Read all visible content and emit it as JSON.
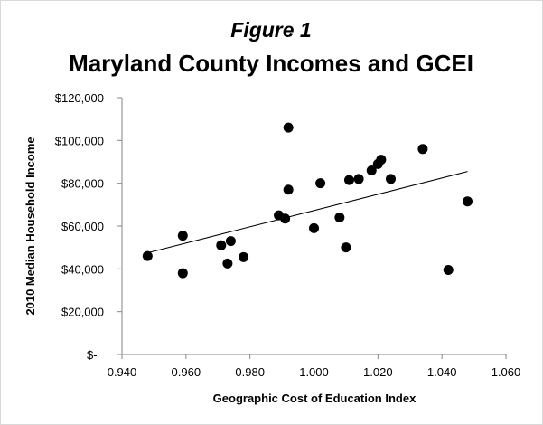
{
  "chart_data": {
    "type": "scatter",
    "title": "Maryland County Incomes and GCEI",
    "subtitle": "Figure 1",
    "xlabel": "Geographic Cost of Education Index",
    "ylabel": "2010 Median Household Income",
    "xlim": [
      0.94,
      1.06
    ],
    "ylim": [
      0,
      120000
    ],
    "x_ticks": [
      0.94,
      0.96,
      0.98,
      1.0,
      1.02,
      1.04,
      1.06
    ],
    "x_tick_labels": [
      "0.940",
      "0.960",
      "0.980",
      "1.000",
      "1.020",
      "1.040",
      "1.060"
    ],
    "y_ticks": [
      0,
      20000,
      40000,
      60000,
      80000,
      100000,
      120000
    ],
    "y_tick_labels": [
      "$-",
      "$20,000",
      "$40,000",
      "$60,000",
      "$80,000",
      "$100,000",
      "$120,000"
    ],
    "grid": false,
    "legend": "none",
    "marker_color": "#000000",
    "series": [
      {
        "points": [
          {
            "x": 0.948,
            "y": 46000
          },
          {
            "x": 0.959,
            "y": 55500
          },
          {
            "x": 0.959,
            "y": 38000
          },
          {
            "x": 0.971,
            "y": 51000
          },
          {
            "x": 0.973,
            "y": 42500
          },
          {
            "x": 0.974,
            "y": 53000
          },
          {
            "x": 0.978,
            "y": 45500
          },
          {
            "x": 0.989,
            "y": 65000
          },
          {
            "x": 0.991,
            "y": 63500
          },
          {
            "x": 0.992,
            "y": 106000
          },
          {
            "x": 0.992,
            "y": 77000
          },
          {
            "x": 1.0,
            "y": 59000
          },
          {
            "x": 1.002,
            "y": 80000
          },
          {
            "x": 1.008,
            "y": 64000
          },
          {
            "x": 1.01,
            "y": 50000
          },
          {
            "x": 1.011,
            "y": 81500
          },
          {
            "x": 1.014,
            "y": 82000
          },
          {
            "x": 1.018,
            "y": 86000
          },
          {
            "x": 1.02,
            "y": 89000
          },
          {
            "x": 1.021,
            "y": 91000
          },
          {
            "x": 1.024,
            "y": 82000
          },
          {
            "x": 1.034,
            "y": 96000
          },
          {
            "x": 1.042,
            "y": 39500
          },
          {
            "x": 1.048,
            "y": 71500
          }
        ]
      }
    ],
    "trendline": {
      "type": "linear",
      "x": [
        0.948,
        1.048
      ],
      "y": [
        47500,
        85500
      ]
    }
  }
}
